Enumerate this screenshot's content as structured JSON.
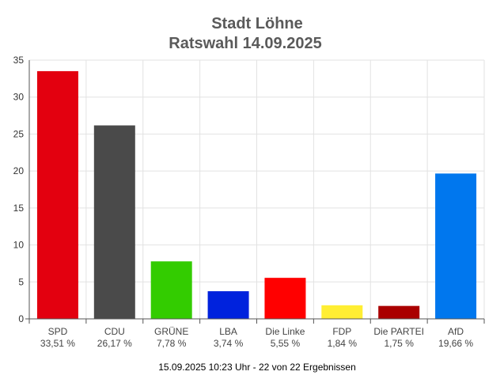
{
  "chart_data": {
    "type": "bar",
    "title": "Stadt Löhne",
    "subtitle": "Ratswahl 14.09.2025",
    "categories": [
      "SPD",
      "CDU",
      "GRÜNE",
      "LBA",
      "Die Linke",
      "FDP",
      "Die PARTEI",
      "AfD"
    ],
    "values": [
      33.51,
      26.17,
      7.78,
      3.74,
      5.55,
      1.84,
      1.75,
      19.66
    ],
    "value_labels": [
      "33,51 %",
      "26,17 %",
      "7,78 %",
      "3,74 %",
      "5,55 %",
      "1,84 %",
      "1,75 %",
      "19,66 %"
    ],
    "colors": [
      "#e3000f",
      "#4a4a4a",
      "#33cc00",
      "#0022dd",
      "#ff0000",
      "#ffee33",
      "#aa0000",
      "#0077ee"
    ],
    "ylim": [
      0,
      35
    ],
    "yticks": [
      "0",
      "5",
      "10",
      "15",
      "20",
      "25",
      "30",
      "35"
    ],
    "grid": true,
    "xlabel": "",
    "ylabel": "",
    "footer": "15.09.2025 10:23 Uhr - 22 von 22 Ergebnissen"
  }
}
